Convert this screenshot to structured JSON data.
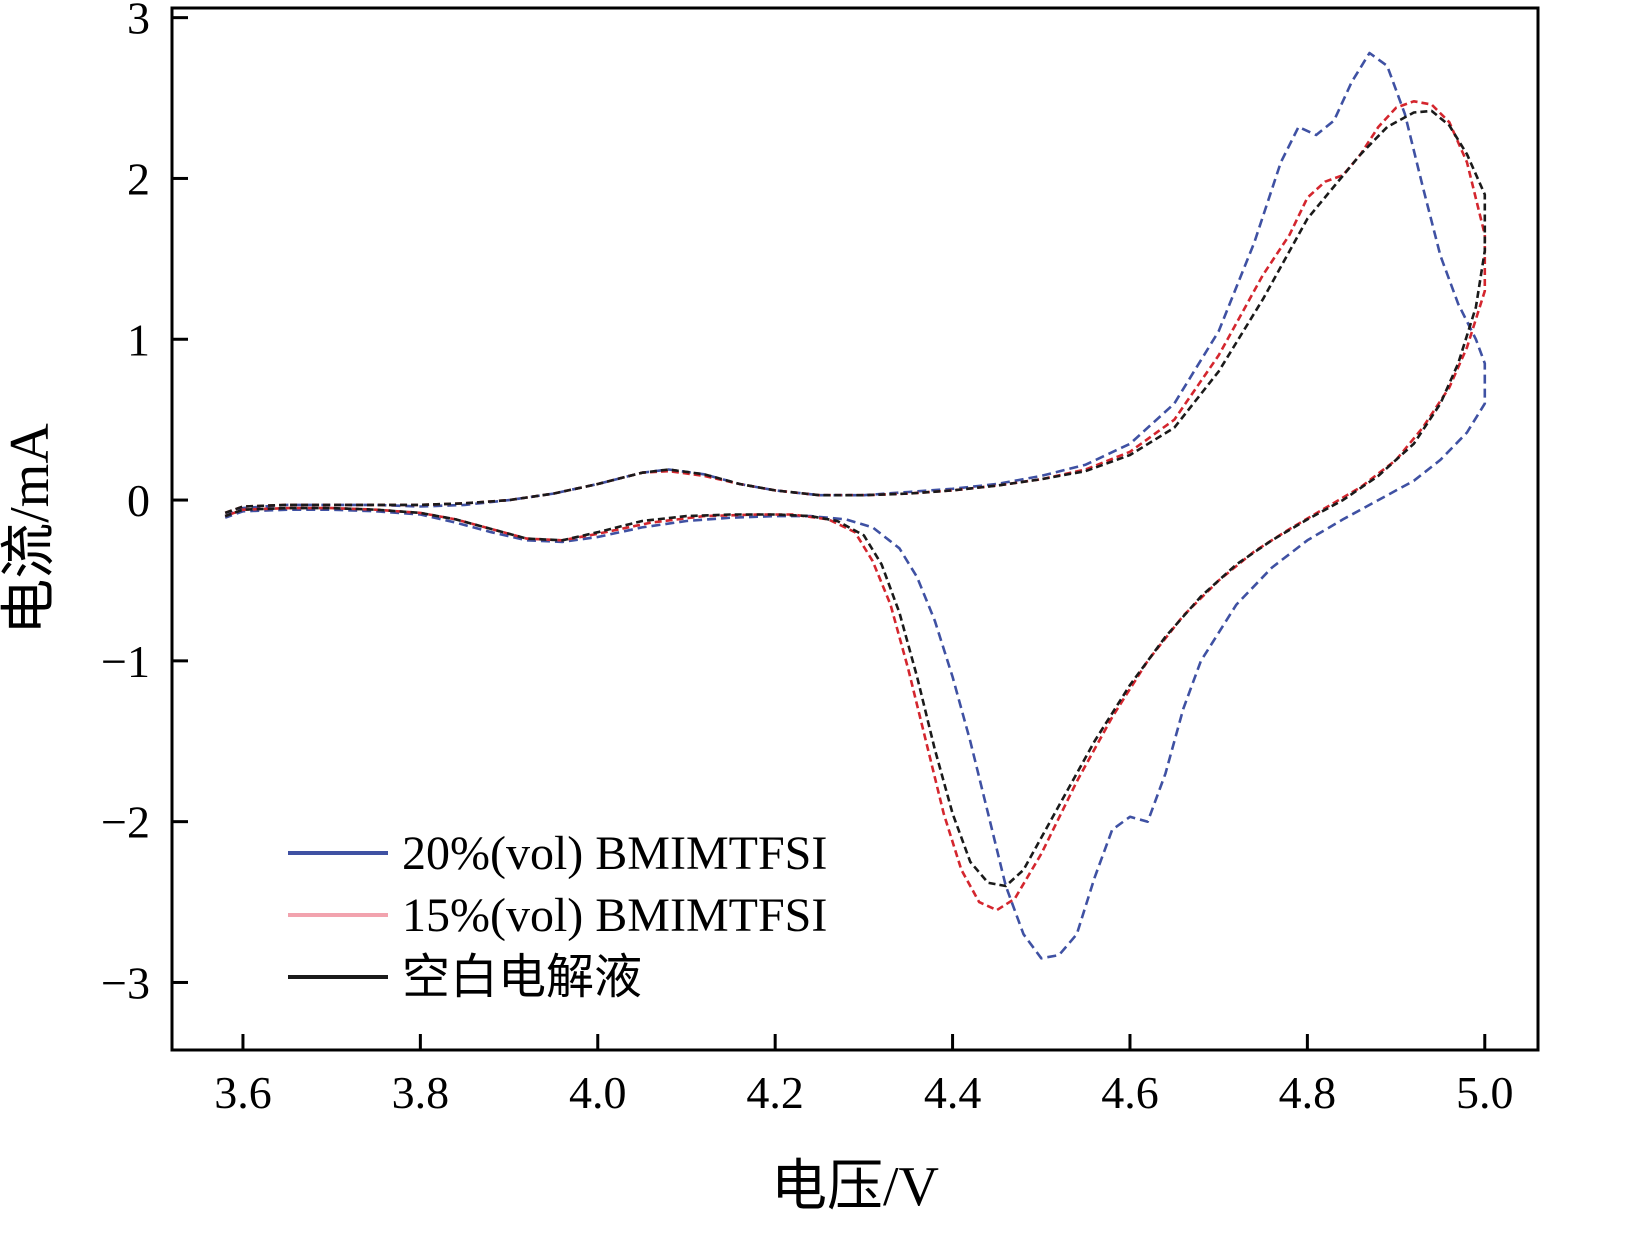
{
  "figure": {
    "background": "#ffffff",
    "frame_color": "#000000"
  },
  "chart_data": {
    "type": "line",
    "title": "",
    "xlabel": "电压/V",
    "ylabel": "电流/mA",
    "xlim": [
      3.52,
      5.06
    ],
    "ylim": [
      -3.42,
      3.06
    ],
    "grid": false,
    "legend_position": "lower-left",
    "x_ticks": [
      3.6,
      3.8,
      4.0,
      4.2,
      4.4,
      4.6,
      4.8,
      5.0
    ],
    "x_tick_labels": [
      "3.6",
      "3.8",
      "4.0",
      "4.2",
      "4.4",
      "4.6",
      "4.8",
      "5.0"
    ],
    "y_ticks": [
      -3,
      -2,
      -1,
      0,
      1,
      2,
      3
    ],
    "y_tick_labels": [
      "−3",
      "−2",
      "−1",
      "0",
      "1",
      "2",
      "3"
    ],
    "series": [
      {
        "name": "20%(vol) BMIMTFSI",
        "color": "#3f51a3",
        "legend_color": "#3f51a3",
        "dash": "9 5",
        "points": [
          [
            3.58,
            -0.1
          ],
          [
            3.6,
            -0.05
          ],
          [
            3.65,
            -0.03
          ],
          [
            3.7,
            -0.03
          ],
          [
            3.75,
            -0.03
          ],
          [
            3.8,
            -0.04
          ],
          [
            3.85,
            -0.03
          ],
          [
            3.9,
            0.0
          ],
          [
            3.95,
            0.04
          ],
          [
            4.0,
            0.1
          ],
          [
            4.05,
            0.17
          ],
          [
            4.08,
            0.19
          ],
          [
            4.12,
            0.16
          ],
          [
            4.16,
            0.1
          ],
          [
            4.2,
            0.06
          ],
          [
            4.25,
            0.03
          ],
          [
            4.3,
            0.03
          ],
          [
            4.35,
            0.05
          ],
          [
            4.4,
            0.07
          ],
          [
            4.45,
            0.1
          ],
          [
            4.5,
            0.15
          ],
          [
            4.55,
            0.22
          ],
          [
            4.6,
            0.35
          ],
          [
            4.65,
            0.6
          ],
          [
            4.7,
            1.05
          ],
          [
            4.74,
            1.6
          ],
          [
            4.77,
            2.1
          ],
          [
            4.79,
            2.32
          ],
          [
            4.81,
            2.27
          ],
          [
            4.83,
            2.36
          ],
          [
            4.85,
            2.6
          ],
          [
            4.87,
            2.78
          ],
          [
            4.89,
            2.7
          ],
          [
            4.91,
            2.4
          ],
          [
            4.93,
            1.95
          ],
          [
            4.95,
            1.52
          ],
          [
            4.97,
            1.22
          ],
          [
            4.99,
            1.0
          ],
          [
            5.0,
            0.85
          ],
          [
            5.0,
            0.6
          ],
          [
            4.98,
            0.42
          ],
          [
            4.95,
            0.25
          ],
          [
            4.92,
            0.12
          ],
          [
            4.88,
            0.0
          ],
          [
            4.84,
            -0.12
          ],
          [
            4.8,
            -0.25
          ],
          [
            4.76,
            -0.42
          ],
          [
            4.72,
            -0.65
          ],
          [
            4.68,
            -1.0
          ],
          [
            4.66,
            -1.3
          ],
          [
            4.64,
            -1.7
          ],
          [
            4.62,
            -2.0
          ],
          [
            4.6,
            -1.97
          ],
          [
            4.58,
            -2.05
          ],
          [
            4.56,
            -2.35
          ],
          [
            4.54,
            -2.7
          ],
          [
            4.52,
            -2.83
          ],
          [
            4.5,
            -2.85
          ],
          [
            4.48,
            -2.7
          ],
          [
            4.46,
            -2.4
          ],
          [
            4.44,
            -1.95
          ],
          [
            4.42,
            -1.5
          ],
          [
            4.4,
            -1.1
          ],
          [
            4.38,
            -0.75
          ],
          [
            4.36,
            -0.48
          ],
          [
            4.34,
            -0.3
          ],
          [
            4.31,
            -0.17
          ],
          [
            4.28,
            -0.12
          ],
          [
            4.24,
            -0.1
          ],
          [
            4.2,
            -0.1
          ],
          [
            4.15,
            -0.11
          ],
          [
            4.1,
            -0.13
          ],
          [
            4.05,
            -0.17
          ],
          [
            4.0,
            -0.23
          ],
          [
            3.96,
            -0.26
          ],
          [
            3.92,
            -0.25
          ],
          [
            3.88,
            -0.2
          ],
          [
            3.84,
            -0.14
          ],
          [
            3.8,
            -0.09
          ],
          [
            3.75,
            -0.07
          ],
          [
            3.7,
            -0.06
          ],
          [
            3.65,
            -0.06
          ],
          [
            3.6,
            -0.07
          ],
          [
            3.58,
            -0.11
          ]
        ]
      },
      {
        "name": "15%(vol) BMIMTFSI",
        "color": "#d4262e",
        "legend_color": "#f2a3ae",
        "dash": "7 4",
        "points": [
          [
            3.58,
            -0.08
          ],
          [
            3.6,
            -0.04
          ],
          [
            3.65,
            -0.03
          ],
          [
            3.7,
            -0.03
          ],
          [
            3.75,
            -0.03
          ],
          [
            3.8,
            -0.03
          ],
          [
            3.85,
            -0.02
          ],
          [
            3.9,
            0.0
          ],
          [
            3.95,
            0.04
          ],
          [
            4.0,
            0.1
          ],
          [
            4.05,
            0.17
          ],
          [
            4.08,
            0.18
          ],
          [
            4.12,
            0.15
          ],
          [
            4.16,
            0.1
          ],
          [
            4.2,
            0.06
          ],
          [
            4.25,
            0.03
          ],
          [
            4.3,
            0.03
          ],
          [
            4.35,
            0.04
          ],
          [
            4.4,
            0.06
          ],
          [
            4.45,
            0.09
          ],
          [
            4.5,
            0.13
          ],
          [
            4.55,
            0.19
          ],
          [
            4.6,
            0.3
          ],
          [
            4.65,
            0.5
          ],
          [
            4.7,
            0.9
          ],
          [
            4.75,
            1.4
          ],
          [
            4.78,
            1.65
          ],
          [
            4.8,
            1.88
          ],
          [
            4.82,
            1.98
          ],
          [
            4.84,
            2.02
          ],
          [
            4.86,
            2.15
          ],
          [
            4.88,
            2.32
          ],
          [
            4.9,
            2.44
          ],
          [
            4.92,
            2.48
          ],
          [
            4.94,
            2.46
          ],
          [
            4.96,
            2.35
          ],
          [
            4.98,
            2.1
          ],
          [
            5.0,
            1.65
          ],
          [
            5.0,
            1.3
          ],
          [
            4.98,
            0.95
          ],
          [
            4.96,
            0.7
          ],
          [
            4.93,
            0.45
          ],
          [
            4.9,
            0.25
          ],
          [
            4.86,
            0.08
          ],
          [
            4.82,
            -0.05
          ],
          [
            4.78,
            -0.18
          ],
          [
            4.74,
            -0.32
          ],
          [
            4.7,
            -0.5
          ],
          [
            4.66,
            -0.72
          ],
          [
            4.62,
            -1.0
          ],
          [
            4.58,
            -1.35
          ],
          [
            4.54,
            -1.75
          ],
          [
            4.5,
            -2.2
          ],
          [
            4.47,
            -2.48
          ],
          [
            4.45,
            -2.55
          ],
          [
            4.43,
            -2.5
          ],
          [
            4.41,
            -2.3
          ],
          [
            4.39,
            -1.95
          ],
          [
            4.37,
            -1.5
          ],
          [
            4.35,
            -1.05
          ],
          [
            4.33,
            -0.65
          ],
          [
            4.31,
            -0.38
          ],
          [
            4.29,
            -0.2
          ],
          [
            4.26,
            -0.12
          ],
          [
            4.22,
            -0.09
          ],
          [
            4.18,
            -0.09
          ],
          [
            4.12,
            -0.1
          ],
          [
            4.06,
            -0.14
          ],
          [
            4.0,
            -0.21
          ],
          [
            3.96,
            -0.25
          ],
          [
            3.92,
            -0.24
          ],
          [
            3.88,
            -0.18
          ],
          [
            3.84,
            -0.12
          ],
          [
            3.8,
            -0.08
          ],
          [
            3.75,
            -0.06
          ],
          [
            3.7,
            -0.05
          ],
          [
            3.65,
            -0.05
          ],
          [
            3.6,
            -0.06
          ],
          [
            3.58,
            -0.1
          ]
        ]
      },
      {
        "name": "空白电解液",
        "color": "#1a1a1a",
        "legend_color": "#1a1a1a",
        "dash": "7 4",
        "points": [
          [
            3.58,
            -0.08
          ],
          [
            3.6,
            -0.04
          ],
          [
            3.65,
            -0.03
          ],
          [
            3.7,
            -0.03
          ],
          [
            3.75,
            -0.03
          ],
          [
            3.8,
            -0.03
          ],
          [
            3.85,
            -0.02
          ],
          [
            3.9,
            0.0
          ],
          [
            3.95,
            0.04
          ],
          [
            4.0,
            0.1
          ],
          [
            4.05,
            0.17
          ],
          [
            4.08,
            0.19
          ],
          [
            4.12,
            0.16
          ],
          [
            4.16,
            0.1
          ],
          [
            4.2,
            0.06
          ],
          [
            4.25,
            0.03
          ],
          [
            4.3,
            0.03
          ],
          [
            4.35,
            0.04
          ],
          [
            4.4,
            0.06
          ],
          [
            4.45,
            0.09
          ],
          [
            4.5,
            0.13
          ],
          [
            4.55,
            0.18
          ],
          [
            4.6,
            0.28
          ],
          [
            4.65,
            0.45
          ],
          [
            4.7,
            0.8
          ],
          [
            4.75,
            1.25
          ],
          [
            4.8,
            1.75
          ],
          [
            4.83,
            1.95
          ],
          [
            4.86,
            2.15
          ],
          [
            4.89,
            2.32
          ],
          [
            4.92,
            2.41
          ],
          [
            4.94,
            2.42
          ],
          [
            4.96,
            2.33
          ],
          [
            4.98,
            2.15
          ],
          [
            5.0,
            1.9
          ],
          [
            5.0,
            1.55
          ],
          [
            4.99,
            1.2
          ],
          [
            4.97,
            0.85
          ],
          [
            4.95,
            0.6
          ],
          [
            4.92,
            0.35
          ],
          [
            4.88,
            0.15
          ],
          [
            4.84,
            0.0
          ],
          [
            4.8,
            -0.12
          ],
          [
            4.76,
            -0.25
          ],
          [
            4.72,
            -0.4
          ],
          [
            4.68,
            -0.6
          ],
          [
            4.64,
            -0.85
          ],
          [
            4.6,
            -1.15
          ],
          [
            4.56,
            -1.5
          ],
          [
            4.52,
            -1.9
          ],
          [
            4.48,
            -2.3
          ],
          [
            4.46,
            -2.4
          ],
          [
            4.44,
            -2.38
          ],
          [
            4.42,
            -2.25
          ],
          [
            4.4,
            -1.95
          ],
          [
            4.38,
            -1.55
          ],
          [
            4.36,
            -1.1
          ],
          [
            4.34,
            -0.7
          ],
          [
            4.32,
            -0.4
          ],
          [
            4.3,
            -0.22
          ],
          [
            4.27,
            -0.13
          ],
          [
            4.24,
            -0.1
          ],
          [
            4.2,
            -0.09
          ],
          [
            4.15,
            -0.09
          ],
          [
            4.1,
            -0.1
          ],
          [
            4.05,
            -0.13
          ],
          [
            4.0,
            -0.2
          ],
          [
            3.96,
            -0.25
          ],
          [
            3.92,
            -0.24
          ],
          [
            3.88,
            -0.18
          ],
          [
            3.84,
            -0.12
          ],
          [
            3.8,
            -0.08
          ],
          [
            3.75,
            -0.06
          ],
          [
            3.7,
            -0.05
          ],
          [
            3.65,
            -0.05
          ],
          [
            3.6,
            -0.06
          ],
          [
            3.58,
            -0.1
          ]
        ]
      }
    ]
  },
  "legend": {
    "items": [
      {
        "label": "20%(vol) BMIMTFSI"
      },
      {
        "label": "15%(vol) BMIMTFSI"
      },
      {
        "label": "空白电解液"
      }
    ]
  }
}
